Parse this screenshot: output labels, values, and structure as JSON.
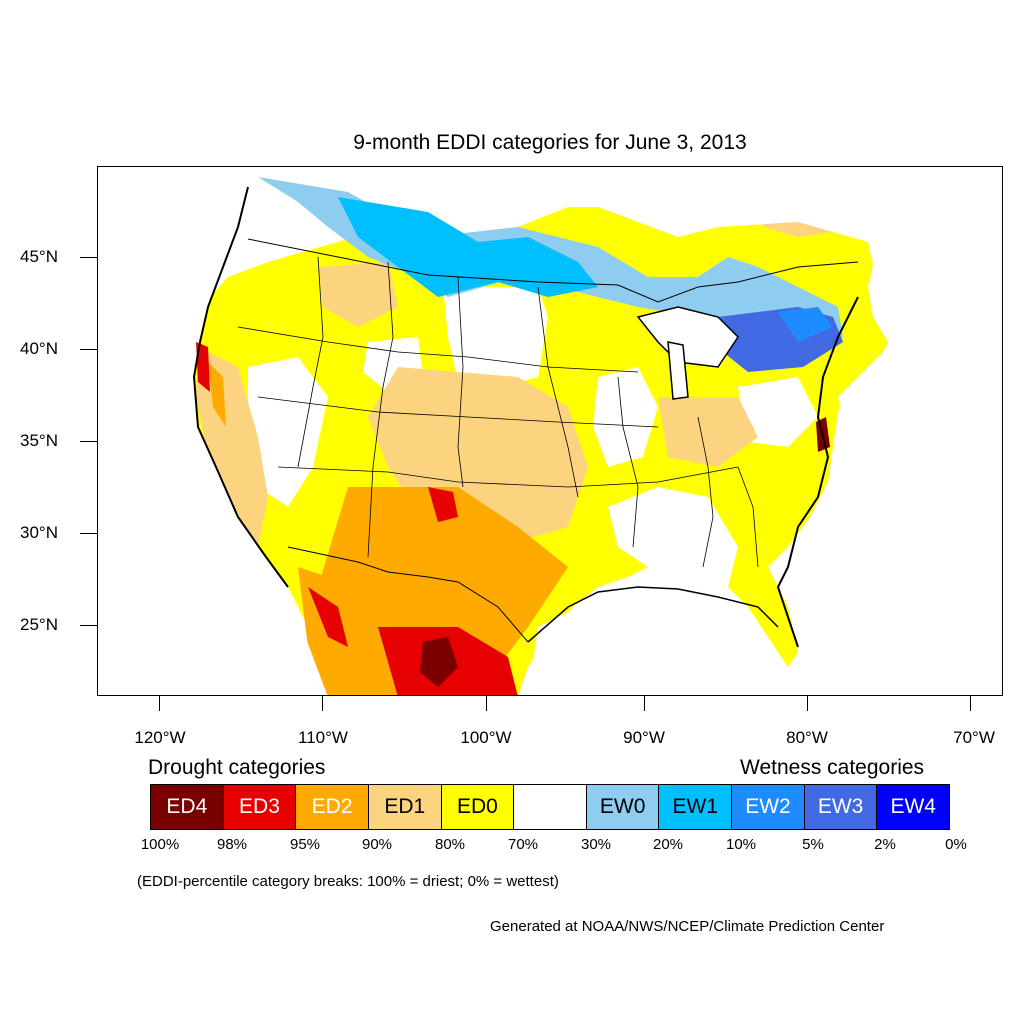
{
  "title": "9-month EDDI categories for June 3, 2013",
  "latitude_labels": [
    "45°N",
    "40°N",
    "35°N",
    "30°N",
    "25°N"
  ],
  "longitude_labels": [
    "120°W",
    "110°W",
    "100°W",
    "90°W",
    "80°W",
    "70°W"
  ],
  "legend": {
    "drought_heading": "Drought categories",
    "wetness_heading": "Wetness categories",
    "categories": [
      {
        "label": "ED4",
        "color": "#7a0000",
        "text_color": "#ffffff"
      },
      {
        "label": "ED3",
        "color": "#e60000",
        "text_color": "#ffffff"
      },
      {
        "label": "ED2",
        "color": "#ffaa00",
        "text_color": "#ffffff"
      },
      {
        "label": "ED1",
        "color": "#fcd37f",
        "text_color": "#000000"
      },
      {
        "label": "ED0",
        "color": "#ffff00",
        "text_color": "#000000"
      },
      {
        "label": "",
        "color": "#ffffff",
        "text_color": "#000000"
      },
      {
        "label": "EW0",
        "color": "#8ecdf0",
        "text_color": "#000000"
      },
      {
        "label": "EW1",
        "color": "#00bfff",
        "text_color": "#000000"
      },
      {
        "label": "EW2",
        "color": "#1e8bff",
        "text_color": "#ffffff"
      },
      {
        "label": "EW3",
        "color": "#4169e1",
        "text_color": "#ffffff"
      },
      {
        "label": "EW4",
        "color": "#0000ff",
        "text_color": "#ffffff"
      }
    ],
    "percentiles": [
      "100%",
      "98%",
      "95%",
      "90%",
      "80%",
      "70%",
      "30%",
      "20%",
      "10%",
      "5%",
      "2%",
      "0%"
    ]
  },
  "breaks_note": "(EDDI-percentile category breaks: 100% = driest; 0% = wettest)",
  "credit": "Generated at NOAA/NWS/NCEP/Climate Prediction Center",
  "map_colors": {
    "water": "#ffffff",
    "wet_light": "#8ecdf0",
    "wet_mid": "#00bfff",
    "wet_strong": "#1e8bff",
    "wet_stronger": "#4169e1",
    "dry_ed0": "#ffff00",
    "dry_ed1": "#fcd37f",
    "dry_ed2": "#ffaa00",
    "dry_ed3": "#e60000",
    "dry_ed4": "#7a0000"
  }
}
